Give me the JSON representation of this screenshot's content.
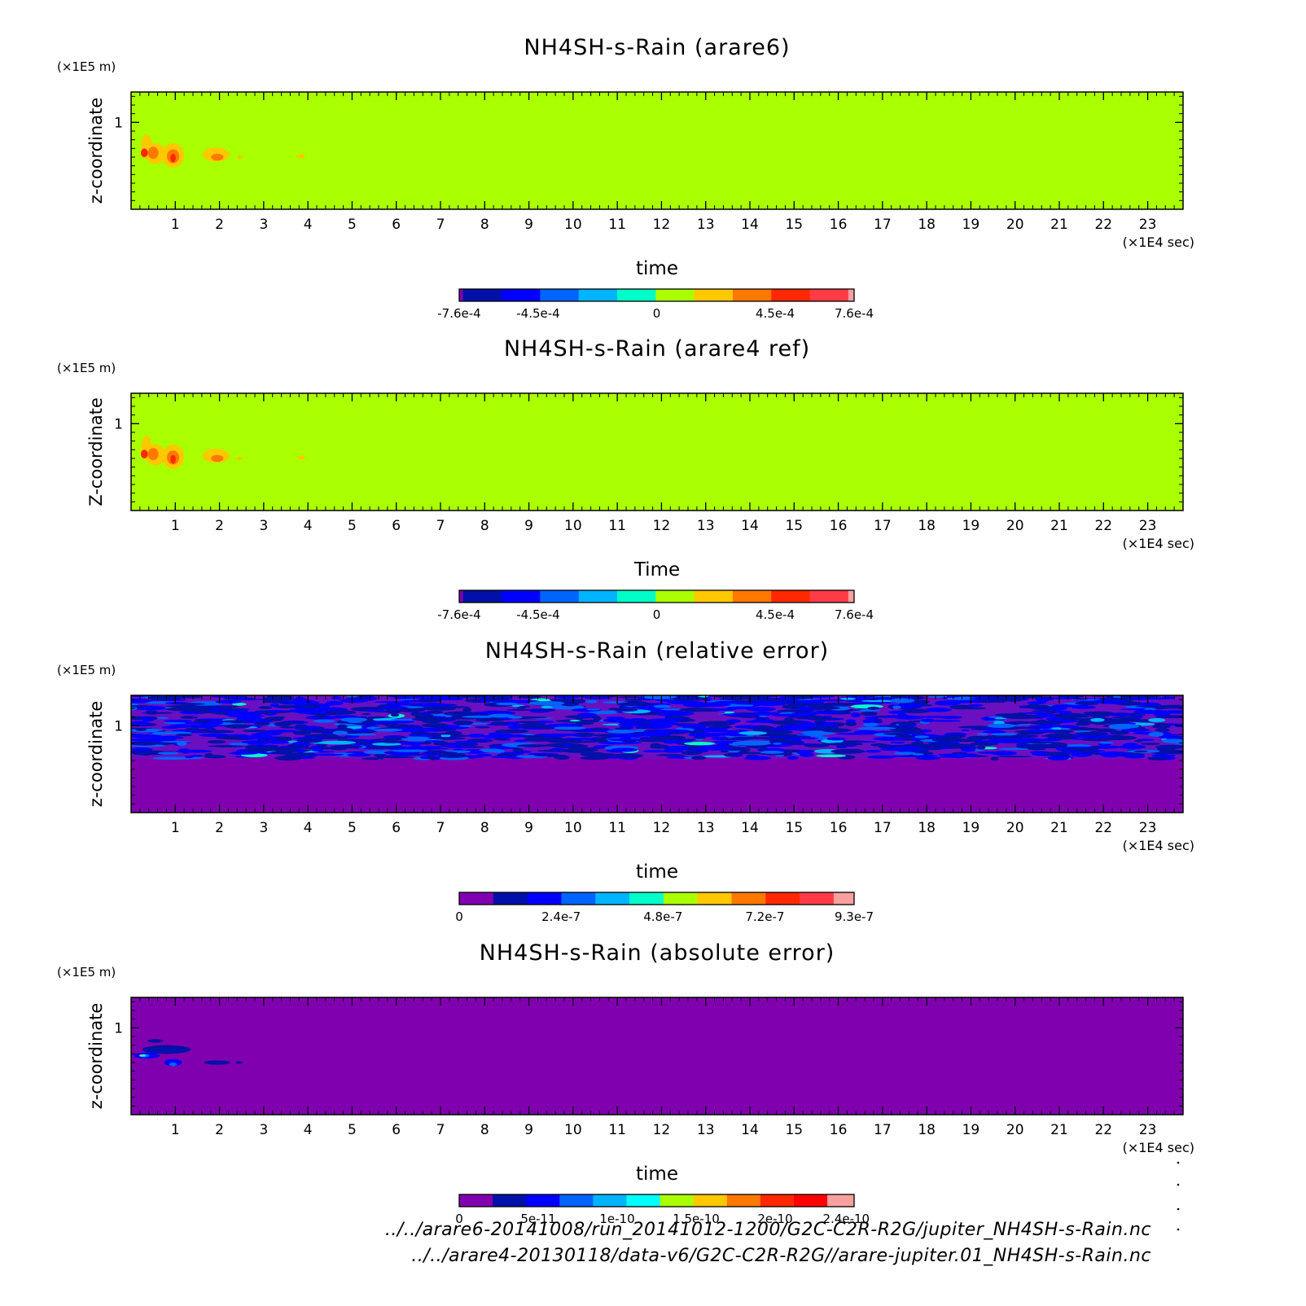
{
  "chart_data": [
    {
      "type": "heatmap",
      "title": "NH4SH-s-Rain (arare6)",
      "xlabel": "time",
      "ylabel": "z-coordinate",
      "x_unit": "(×1E4 sec)",
      "y_unit": "(×1E5 m)",
      "xlim": [
        0,
        23.8
      ],
      "ylim": [
        0,
        1.35
      ],
      "x_ticks": [
        1,
        2,
        3,
        4,
        5,
        6,
        7,
        8,
        9,
        10,
        11,
        12,
        13,
        14,
        15,
        16,
        17,
        18,
        19,
        20,
        21,
        22,
        23
      ],
      "y_ticks": [
        1
      ],
      "background_color": "#aaff00",
      "field": "rain_blobs",
      "colorbar": {
        "colors": [
          "#8000b0",
          "#0010a8",
          "#0000ff",
          "#0064ff",
          "#00b4ff",
          "#00ffc8",
          "#aaff00",
          "#ffc800",
          "#ff7800",
          "#ff2800",
          "#ff3c46",
          "#f8a0a0"
        ],
        "widths": [
          0.1,
          1,
          1,
          1,
          1,
          1,
          1,
          1,
          1,
          1,
          1,
          0.15
        ],
        "labels": [
          {
            "text": "-7.6e-4",
            "pos": 0.0
          },
          {
            "text": "-4.5e-4",
            "pos": 0.2
          },
          {
            "text": "0",
            "pos": 0.5
          },
          {
            "text": "4.5e-4",
            "pos": 0.8
          },
          {
            "text": "7.6e-4",
            "pos": 1.0
          }
        ]
      }
    },
    {
      "type": "heatmap",
      "title": "NH4SH-s-Rain (arare4 ref)",
      "xlabel": "Time",
      "ylabel": "Z-coordinate",
      "x_unit": "(×1E4 sec)",
      "y_unit": "(×1E5 m)",
      "xlim": [
        0,
        23.8
      ],
      "ylim": [
        0,
        1.35
      ],
      "x_ticks": [
        1,
        2,
        3,
        4,
        5,
        6,
        7,
        8,
        9,
        10,
        11,
        12,
        13,
        14,
        15,
        16,
        17,
        18,
        19,
        20,
        21,
        22,
        23
      ],
      "y_ticks": [
        1
      ],
      "background_color": "#aaff00",
      "field": "rain_blobs",
      "colorbar": {
        "colors": [
          "#8000b0",
          "#0010a8",
          "#0000ff",
          "#0064ff",
          "#00b4ff",
          "#00ffc8",
          "#aaff00",
          "#ffc800",
          "#ff7800",
          "#ff2800",
          "#ff3c46",
          "#f8a0a0"
        ],
        "widths": [
          0.1,
          1,
          1,
          1,
          1,
          1,
          1,
          1,
          1,
          1,
          1,
          0.15
        ],
        "labels": [
          {
            "text": "-7.6e-4",
            "pos": 0.0
          },
          {
            "text": "-4.5e-4",
            "pos": 0.2
          },
          {
            "text": "0",
            "pos": 0.5
          },
          {
            "text": "4.5e-4",
            "pos": 0.8
          },
          {
            "text": "7.6e-4",
            "pos": 1.0
          }
        ]
      }
    },
    {
      "type": "heatmap",
      "title": "NH4SH-s-Rain (relative error)",
      "xlabel": "time",
      "ylabel": "z-coordinate",
      "x_unit": "(×1E4 sec)",
      "y_unit": "(×1E5 m)",
      "xlim": [
        0,
        23.8
      ],
      "ylim": [
        0,
        1.35
      ],
      "x_ticks": [
        1,
        2,
        3,
        4,
        5,
        6,
        7,
        8,
        9,
        10,
        11,
        12,
        13,
        14,
        15,
        16,
        17,
        18,
        19,
        20,
        21,
        22,
        23
      ],
      "y_ticks": [
        1
      ],
      "background_color": "#8000b0",
      "field": "noise_upper",
      "noise_bottom": 0.62,
      "colorbar": {
        "colors": [
          "#8000b0",
          "#0010a8",
          "#0000ff",
          "#0064ff",
          "#00b4ff",
          "#00ffc8",
          "#aaff00",
          "#ffc800",
          "#ff7800",
          "#ff2800",
          "#ff3c46",
          "#f8a0a0"
        ],
        "widths": [
          1,
          1,
          1,
          1,
          1,
          1,
          1,
          1,
          1,
          1,
          1,
          0.6
        ],
        "labels": [
          {
            "text": "0",
            "pos": 0.0
          },
          {
            "text": "2.4e-7",
            "pos": 0.258
          },
          {
            "text": "4.8e-7",
            "pos": 0.516
          },
          {
            "text": "7.2e-7",
            "pos": 0.774
          },
          {
            "text": "9.3e-7",
            "pos": 1.0
          }
        ]
      }
    },
    {
      "type": "heatmap",
      "title": "NH4SH-s-Rain (absolute error)",
      "xlabel": "time",
      "ylabel": "z-coordinate",
      "x_unit": "(×1E4 sec)",
      "y_unit": "(×1E5 m)",
      "xlim": [
        0,
        23.8
      ],
      "ylim": [
        0,
        1.35
      ],
      "x_ticks": [
        1,
        2,
        3,
        4,
        5,
        6,
        7,
        8,
        9,
        10,
        11,
        12,
        13,
        14,
        15,
        16,
        17,
        18,
        19,
        20,
        21,
        22,
        23
      ],
      "y_ticks": [
        1
      ],
      "background_color": "#8000b0",
      "field": "error_blobs",
      "colorbar": {
        "colors": [
          "#8000b0",
          "#0010a8",
          "#0000ff",
          "#0064ff",
          "#00b4ff",
          "#00ffff",
          "#aaff00",
          "#ffc800",
          "#ff7800",
          "#ff2800",
          "#ff0000",
          "#f8a0a0"
        ],
        "widths": [
          1,
          1,
          1,
          1,
          1,
          1,
          1,
          1,
          1,
          1,
          1,
          0.8
        ],
        "labels": [
          {
            "text": "0",
            "pos": 0.0
          },
          {
            "text": "5e-11",
            "pos": 0.2
          },
          {
            "text": "1e-10",
            "pos": 0.4
          },
          {
            "text": "1.5e-10",
            "pos": 0.6
          },
          {
            "text": "2e-10",
            "pos": 0.8
          },
          {
            "text": "2.4e-10",
            "pos": 0.98
          }
        ]
      }
    }
  ],
  "footer": {
    "line1": "../../arare6-20141008/run_20141012-1200/G2C-C2R-R2G/jupiter_NH4SH-s-Rain.nc",
    "line2": "../../arare4-20130118/data-v6/G2C-C2R-R2G//arare-jupiter.01_NH4SH-s-Rain.nc"
  }
}
